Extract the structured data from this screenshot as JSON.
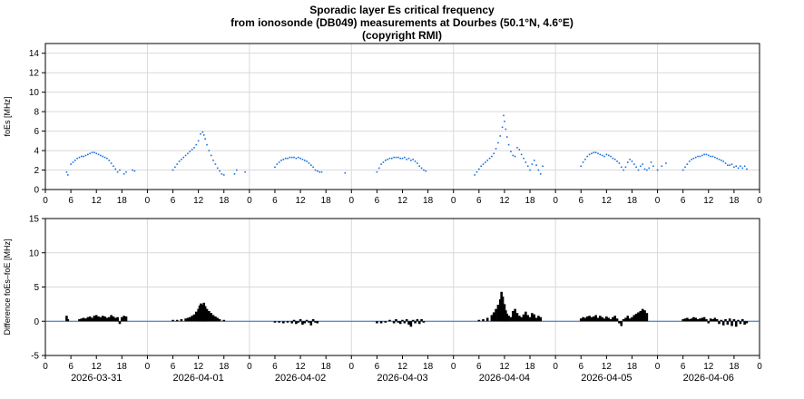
{
  "title_lines": [
    "Sporadic layer Es critical frequency",
    "from ionosonde (DB049) measurements at Dourbes (50.1°N, 4.6°E)",
    "(copyright RMI)"
  ],
  "colors": {
    "fo_es": "#1a6fe0",
    "difference": "#000000",
    "zero_line": "#2a6fbf",
    "grid": "#d9d9d9",
    "axis": "#000000"
  },
  "chart_data": [
    {
      "type": "scatter",
      "name": "upper",
      "ylabel": "foEs [MHz]",
      "ylim": [
        0,
        15
      ],
      "yticks": [
        0,
        2,
        4,
        6,
        8,
        10,
        12,
        14
      ],
      "xlim": [
        0,
        168
      ],
      "xtick_hours": [
        "0",
        "6",
        "12",
        "18"
      ],
      "days": [
        "2026-03-31",
        "2026-04-01",
        "2026-04-02",
        "2026-04-03",
        "2026-04-04",
        "2026-04-05",
        "2026-04-06"
      ],
      "grid": true,
      "series": [
        {
          "x": [
            5.0,
            5.3,
            6.0,
            6.5,
            7.0,
            7.5,
            8.0,
            8.5,
            9.0,
            9.5,
            10.0,
            10.5,
            11.0,
            11.5,
            12.0,
            12.5,
            13.0,
            13.5,
            14.0,
            14.5,
            15.0,
            15.5,
            16.0,
            16.5,
            17.0,
            17.5,
            18.5,
            19.0,
            20.5,
            21.0,
            30.0,
            30.5,
            31.0,
            31.5,
            32.0,
            32.5,
            33.0,
            33.5,
            34.0,
            34.5,
            35.0,
            35.5,
            36.0,
            36.5,
            37.0,
            37.3,
            37.6,
            38.0,
            38.5,
            39.0,
            39.5,
            40.0,
            40.5,
            41.0,
            41.5,
            42.0,
            44.5,
            45.0,
            47.0,
            54.0,
            54.5,
            55.0,
            55.5,
            56.0,
            56.5,
            57.0,
            57.5,
            58.0,
            58.5,
            59.0,
            59.5,
            60.0,
            60.5,
            61.0,
            61.5,
            62.0,
            62.5,
            63.0,
            63.5,
            64.0,
            64.5,
            65.0,
            70.5,
            78.0,
            78.5,
            79.0,
            79.5,
            80.0,
            80.5,
            81.0,
            81.5,
            82.0,
            82.5,
            83.0,
            83.5,
            84.0,
            84.5,
            85.0,
            85.5,
            86.0,
            86.5,
            87.0,
            87.5,
            88.0,
            88.5,
            89.0,
            89.5,
            101.0,
            101.5,
            102.0,
            102.5,
            103.0,
            103.5,
            104.0,
            104.5,
            105.0,
            105.5,
            106.0,
            106.5,
            107.0,
            107.5,
            107.8,
            108.0,
            108.3,
            108.6,
            109.0,
            109.5,
            110.0,
            110.5,
            111.0,
            111.5,
            112.0,
            112.5,
            113.0,
            113.5,
            114.0,
            114.5,
            115.0,
            115.5,
            116.0,
            116.5,
            117.0,
            126.0,
            126.5,
            127.0,
            127.5,
            128.0,
            128.5,
            129.0,
            129.5,
            130.0,
            130.5,
            131.0,
            131.5,
            132.0,
            132.5,
            133.0,
            133.5,
            134.0,
            134.5,
            135.0,
            135.5,
            136.0,
            136.5,
            137.0,
            137.5,
            138.0,
            138.5,
            139.0,
            139.5,
            140.0,
            140.5,
            141.0,
            141.5,
            142.0,
            142.5,
            143.0,
            144.0,
            145.0,
            146.0,
            150.0,
            150.5,
            151.0,
            151.5,
            152.0,
            152.5,
            153.0,
            153.5,
            154.0,
            154.5,
            155.0,
            155.5,
            156.0,
            156.5,
            157.0,
            157.5,
            158.0,
            158.5,
            159.0,
            159.5,
            160.0,
            160.5,
            161.0,
            161.5,
            162.0,
            162.5,
            163.0,
            163.5,
            164.0,
            164.5,
            165.0
          ],
          "y": [
            1.8,
            1.5,
            2.6,
            2.8,
            3.0,
            3.2,
            3.3,
            3.4,
            3.4,
            3.5,
            3.6,
            3.7,
            3.8,
            3.8,
            3.7,
            3.6,
            3.5,
            3.4,
            3.3,
            3.2,
            3.0,
            2.7,
            2.4,
            2.1,
            1.8,
            2.0,
            1.6,
            1.8,
            2.0,
            1.9,
            2.0,
            2.3,
            2.6,
            2.9,
            3.1,
            3.3,
            3.5,
            3.7,
            3.9,
            4.1,
            4.3,
            4.6,
            5.0,
            5.7,
            5.9,
            5.6,
            5.2,
            4.6,
            4.0,
            3.5,
            3.0,
            2.6,
            2.2,
            1.9,
            1.6,
            1.5,
            1.6,
            2.0,
            1.8,
            2.3,
            2.6,
            2.8,
            3.0,
            3.1,
            3.2,
            3.2,
            3.3,
            3.3,
            3.3,
            3.2,
            3.3,
            3.2,
            3.1,
            3.0,
            2.9,
            2.7,
            2.5,
            2.3,
            2.0,
            1.9,
            1.8,
            1.8,
            1.7,
            1.8,
            2.2,
            2.6,
            2.8,
            3.0,
            3.1,
            3.2,
            3.2,
            3.3,
            3.3,
            3.3,
            3.2,
            3.2,
            3.3,
            3.1,
            3.2,
            3.0,
            3.1,
            2.9,
            2.7,
            2.4,
            2.2,
            2.0,
            1.9,
            1.5,
            1.8,
            2.1,
            2.4,
            2.6,
            2.8,
            3.0,
            3.2,
            3.4,
            3.7,
            4.2,
            4.8,
            5.5,
            6.4,
            7.6,
            7.0,
            6.2,
            5.4,
            4.6,
            3.9,
            3.5,
            3.4,
            4.3,
            4.1,
            3.6,
            3.2,
            2.8,
            2.4,
            2.0,
            2.6,
            3.0,
            2.5,
            2.0,
            1.6,
            2.4,
            2.4,
            2.8,
            3.1,
            3.4,
            3.6,
            3.7,
            3.8,
            3.8,
            3.7,
            3.6,
            3.5,
            3.4,
            3.6,
            3.5,
            3.4,
            3.2,
            3.1,
            2.9,
            2.7,
            2.3,
            2.0,
            2.3,
            2.8,
            3.1,
            2.9,
            2.6,
            2.3,
            2.0,
            2.4,
            2.6,
            2.1,
            2.0,
            2.2,
            2.8,
            2.4,
            2.0,
            2.4,
            2.7,
            2.0,
            2.3,
            2.6,
            2.9,
            3.1,
            3.2,
            3.3,
            3.4,
            3.4,
            3.5,
            3.6,
            3.6,
            3.5,
            3.4,
            3.4,
            3.3,
            3.2,
            3.1,
            3.0,
            2.9,
            2.7,
            2.5,
            2.5,
            2.6,
            2.3,
            2.4,
            2.2,
            2.4,
            2.2,
            2.4,
            2.1
          ]
        }
      ]
    },
    {
      "type": "bar",
      "name": "lower",
      "ylabel": "Difference foEs–foE [MHz]",
      "ylim": [
        -5,
        15
      ],
      "yticks": [
        -5,
        0,
        5,
        10,
        15
      ],
      "xlim": [
        0,
        168
      ],
      "xtick_hours": [
        "0",
        "6",
        "12",
        "18"
      ],
      "days": [
        "2026-03-31",
        "2026-04-01",
        "2026-04-02",
        "2026-04-03",
        "2026-04-04",
        "2026-04-05",
        "2026-04-06"
      ],
      "grid": true,
      "series": [
        {
          "x": [
            5.0,
            5.3,
            8.0,
            8.5,
            9.0,
            9.5,
            10.0,
            10.5,
            11.0,
            11.5,
            12.0,
            12.5,
            13.0,
            13.5,
            14.0,
            14.5,
            15.0,
            15.5,
            16.0,
            16.5,
            17.0,
            17.5,
            18.0,
            18.5,
            19.0,
            30.0,
            31.0,
            32.0,
            33.0,
            33.5,
            34.0,
            34.5,
            35.0,
            35.5,
            36.0,
            36.3,
            36.6,
            37.0,
            37.3,
            37.6,
            38.0,
            38.5,
            39.0,
            39.5,
            40.0,
            40.5,
            41.0,
            42.0,
            54.0,
            55.0,
            56.0,
            57.0,
            58.0,
            58.5,
            59.0,
            59.5,
            60.0,
            60.5,
            61.0,
            61.5,
            62.0,
            62.5,
            63.0,
            63.5,
            64.0,
            78.0,
            79.0,
            80.0,
            81.0,
            82.0,
            82.5,
            83.0,
            83.5,
            84.0,
            84.5,
            85.0,
            85.5,
            86.0,
            86.5,
            87.0,
            87.5,
            88.0,
            88.5,
            89.0,
            102.0,
            103.0,
            104.0,
            105.0,
            105.5,
            106.0,
            106.5,
            107.0,
            107.3,
            107.6,
            108.0,
            108.3,
            108.6,
            109.0,
            109.5,
            110.0,
            110.5,
            111.0,
            111.5,
            112.0,
            112.5,
            113.0,
            113.5,
            114.0,
            114.5,
            115.0,
            115.5,
            116.0,
            116.5,
            126.0,
            126.5,
            127.0,
            127.5,
            128.0,
            128.5,
            129.0,
            129.5,
            130.0,
            130.5,
            131.0,
            131.5,
            132.0,
            132.5,
            133.0,
            133.5,
            134.0,
            134.5,
            135.0,
            135.5,
            136.0,
            136.5,
            137.0,
            137.5,
            138.0,
            138.5,
            139.0,
            139.5,
            140.0,
            140.5,
            141.0,
            141.5,
            150.0,
            150.5,
            151.0,
            151.5,
            152.0,
            152.5,
            153.0,
            153.5,
            154.0,
            154.5,
            155.0,
            155.5,
            156.0,
            156.5,
            157.0,
            157.5,
            158.0,
            158.5,
            159.0,
            159.5,
            160.0,
            160.5,
            161.0,
            161.5,
            162.0,
            162.5,
            163.0,
            163.5,
            164.0,
            164.5,
            165.0
          ],
          "y": [
            0.8,
            0.3,
            0.3,
            0.4,
            0.5,
            0.4,
            0.6,
            0.7,
            0.5,
            0.8,
            0.9,
            0.7,
            0.6,
            0.8,
            0.7,
            0.5,
            0.6,
            0.9,
            0.7,
            0.5,
            0.6,
            -0.4,
            0.6,
            0.8,
            0.7,
            0.2,
            0.2,
            0.3,
            0.4,
            0.5,
            0.6,
            0.8,
            1.0,
            1.4,
            1.8,
            2.3,
            2.6,
            2.4,
            2.7,
            2.2,
            1.8,
            1.5,
            1.2,
            0.9,
            0.7,
            0.5,
            0.3,
            0.2,
            -0.2,
            -0.2,
            -0.3,
            -0.2,
            -0.3,
            0.2,
            -0.4,
            -0.2,
            0.3,
            -0.5,
            -0.3,
            0.2,
            -0.2,
            -0.6,
            0.3,
            -0.2,
            -0.3,
            -0.3,
            -0.3,
            -0.2,
            0.2,
            -0.3,
            0.3,
            -0.2,
            -0.4,
            0.2,
            -0.3,
            0.3,
            -0.5,
            -0.8,
            0.2,
            -0.3,
            0.3,
            -0.4,
            0.3,
            -0.2,
            0.2,
            0.3,
            0.5,
            0.9,
            1.3,
            1.8,
            2.4,
            3.2,
            4.3,
            3.6,
            2.5,
            1.6,
            1.1,
            0.8,
            0.6,
            1.5,
            1.8,
            1.2,
            0.8,
            0.6,
            1.0,
            1.4,
            0.9,
            0.6,
            1.2,
            1.0,
            0.5,
            0.8,
            0.6,
            0.4,
            0.6,
            0.5,
            0.7,
            0.8,
            0.6,
            0.7,
            0.9,
            0.5,
            0.8,
            0.6,
            0.4,
            0.7,
            0.5,
            0.3,
            0.6,
            0.8,
            0.4,
            -0.3,
            -0.7,
            0.3,
            0.5,
            0.8,
            0.4,
            0.6,
            0.9,
            1.1,
            1.3,
            1.5,
            1.8,
            1.6,
            1.2,
            0.3,
            0.4,
            0.5,
            0.3,
            0.4,
            0.6,
            0.5,
            0.3,
            0.4,
            0.5,
            0.6,
            0.3,
            -0.3,
            0.4,
            0.3,
            0.5,
            0.3,
            -0.4,
            0.2,
            -0.6,
            0.3,
            -0.5,
            0.4,
            -0.7,
            0.3,
            -0.8,
            0.2,
            -0.4,
            0.3,
            -0.5,
            -0.3
          ]
        }
      ]
    }
  ]
}
